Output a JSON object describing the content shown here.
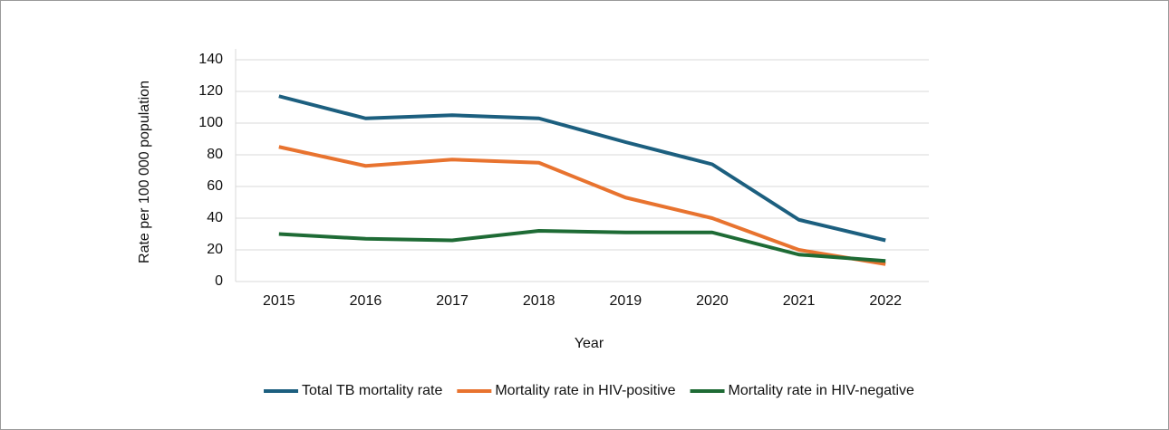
{
  "chart_data": {
    "type": "line",
    "x_label": "Year",
    "y_label": "Rate per 100 000 population",
    "categories": [
      "2015",
      "2016",
      "2017",
      "2018",
      "2019",
      "2020",
      "2021",
      "2022"
    ],
    "series": [
      {
        "name": "Total TB mortality rate",
        "color": "#1c5f7f",
        "values": [
          117,
          103,
          105,
          103,
          88,
          74,
          39,
          26
        ]
      },
      {
        "name": "Mortality rate in HIV-positive",
        "color": "#e8732f",
        "values": [
          85,
          73,
          77,
          75,
          53,
          40,
          20,
          11
        ]
      },
      {
        "name": "Mortality rate in HIV-negative",
        "color": "#1e6b35",
        "values": [
          30,
          27,
          26,
          32,
          31,
          31,
          17,
          13
        ]
      }
    ],
    "ylim": [
      0,
      140
    ],
    "yticks": [
      0,
      20,
      40,
      60,
      80,
      100,
      120,
      140
    ],
    "grid": true,
    "legend": "bottom"
  }
}
